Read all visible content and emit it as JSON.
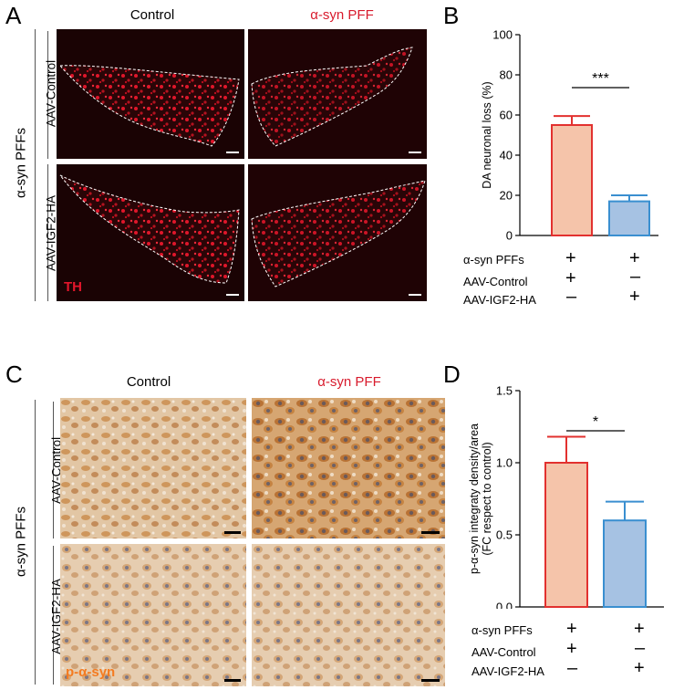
{
  "panels": {
    "A": {
      "letter": "A",
      "col_labels": [
        "Control",
        "α-syn PFF"
      ],
      "row_labels": [
        "AAV-Control",
        "AAV-IGF2-HA"
      ],
      "side_label": "α-syn PFFs",
      "stain_label": "TH",
      "stain_color": "#e3162b"
    },
    "B": {
      "letter": "B",
      "significance": "***"
    },
    "C": {
      "letter": "C",
      "col_labels": [
        "Control",
        "α-syn PFF"
      ],
      "row_labels": [
        "AAV-Control",
        "AAV-IGF2-HA"
      ],
      "side_label": "α-syn PFFs",
      "stain_label": "p-α-syn",
      "stain_color": "#f47b20"
    },
    "D": {
      "letter": "D",
      "significance": "*"
    }
  },
  "conditions": {
    "labels": [
      "α-syn PFFs",
      "AAV-Control",
      "AAV-IGF2-HA"
    ],
    "bar1": [
      "+",
      "+",
      "–"
    ],
    "bar2": [
      "+",
      "–",
      "+"
    ]
  },
  "colors": {
    "bar1_fill": "#f5c4aa",
    "bar1_stroke": "#e2312f",
    "bar2_fill": "#a6c2e3",
    "bar2_stroke": "#3a8fd0"
  },
  "chart_data": [
    {
      "type": "bar",
      "categories": [
        "AAV-Control",
        "AAV-IGF2-HA"
      ],
      "values": [
        55,
        17
      ],
      "errors": [
        4.5,
        3
      ],
      "ylabel": "DA neuronal loss (%)",
      "ylim": [
        0,
        100
      ],
      "yticks": [
        "0",
        "20",
        "40",
        "60",
        "80",
        "100"
      ],
      "ytick_values": [
        0,
        20,
        40,
        60,
        80,
        100
      ]
    },
    {
      "type": "bar",
      "categories": [
        "AAV-Control",
        "AAV-IGF2-HA"
      ],
      "values": [
        1.0,
        0.6
      ],
      "errors": [
        0.18,
        0.13
      ],
      "ylabel": "p-α-syn integraty density/area",
      "ylabel2": "(FC respect to control)",
      "ylim": [
        0,
        1.5
      ],
      "yticks": [
        "0.0",
        "0.5",
        "1.0",
        "1.5"
      ],
      "ytick_values": [
        0,
        0.5,
        1.0,
        1.5
      ]
    }
  ]
}
